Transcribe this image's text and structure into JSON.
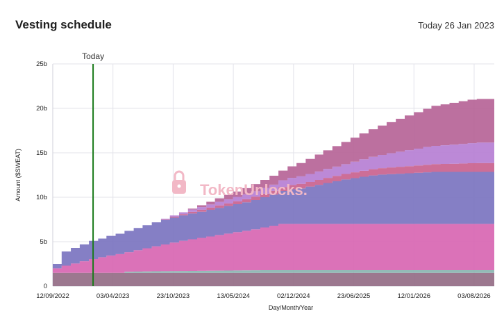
{
  "header": {
    "title": "Vesting schedule",
    "today_label": "Today 26 Jan 2023"
  },
  "watermark": "TokenUnlocks.",
  "colors": {
    "stack": [
      "#946d86",
      "#8ab5b1",
      "#d866b2",
      "#7b74c0",
      "#c9628e",
      "#b67fd4",
      "#b66497"
    ],
    "today_line": "#1a7a1a",
    "grid": "#e3e3ea"
  },
  "chart_data": {
    "type": "area",
    "title": "",
    "xlabel": "Day/Month/Year",
    "ylabel": "Amount ($SWEAT)",
    "ylim": [
      0,
      25
    ],
    "y_unit": "b",
    "yticks": [
      "0",
      "5b",
      "10b",
      "15b",
      "20b",
      "25b"
    ],
    "xticks": [
      "12/09/2022",
      "03/04/2023",
      "23/10/2023",
      "13/05/2024",
      "02/12/2024",
      "23/06/2025",
      "12/01/2026",
      "03/08/2026"
    ],
    "x": [
      "2022-09-12",
      "2022-10-12",
      "2022-11-12",
      "2022-12-12",
      "2023-01-12",
      "2023-02-12",
      "2023-03-12",
      "2023-04-12",
      "2023-05-12",
      "2023-06-12",
      "2023-07-12",
      "2023-08-12",
      "2023-09-12",
      "2023-10-12",
      "2023-11-12",
      "2023-12-12",
      "2024-01-12",
      "2024-02-12",
      "2024-03-12",
      "2024-04-12",
      "2024-05-12",
      "2024-06-12",
      "2024-07-12",
      "2024-08-12",
      "2024-09-12",
      "2024-10-12",
      "2024-11-12",
      "2024-12-12",
      "2025-01-12",
      "2025-02-12",
      "2025-03-12",
      "2025-04-12",
      "2025-05-12",
      "2025-06-12",
      "2025-07-12",
      "2025-08-12",
      "2025-09-12",
      "2025-10-12",
      "2025-11-12",
      "2025-12-12",
      "2026-01-12",
      "2026-02-12",
      "2026-03-12",
      "2026-04-12",
      "2026-05-12",
      "2026-06-12",
      "2026-07-12",
      "2026-08-12",
      "2026-09-12",
      "2026-10-10"
    ],
    "series": [
      {
        "values": [
          1.5,
          1.5,
          1.5,
          1.5,
          1.5,
          1.5,
          1.5,
          1.5,
          1.5,
          1.5,
          1.5,
          1.5,
          1.5,
          1.5,
          1.5,
          1.5,
          1.5,
          1.5,
          1.5,
          1.5,
          1.5,
          1.5,
          1.5,
          1.5,
          1.5,
          1.5,
          1.5,
          1.5,
          1.5,
          1.5,
          1.5,
          1.5,
          1.5,
          1.5,
          1.5,
          1.5,
          1.5,
          1.5,
          1.5,
          1.5,
          1.5,
          1.5,
          1.5,
          1.5,
          1.5,
          1.5,
          1.5,
          1.5,
          1.5,
          1.5
        ]
      },
      {
        "values": [
          0,
          0,
          0,
          0,
          0,
          0,
          0,
          0,
          0.12,
          0.14,
          0.16,
          0.18,
          0.19,
          0.2,
          0.21,
          0.22,
          0.23,
          0.24,
          0.25,
          0.26,
          0.27,
          0.28,
          0.29,
          0.3,
          0.3,
          0.3,
          0.3,
          0.3,
          0.3,
          0.3,
          0.3,
          0.3,
          0.3,
          0.3,
          0.3,
          0.3,
          0.3,
          0.3,
          0.3,
          0.3,
          0.3,
          0.3,
          0.3,
          0.3,
          0.3,
          0.3,
          0.3,
          0.3,
          0.3,
          0.3
        ]
      },
      {
        "values": [
          0.5,
          0.8,
          1.05,
          1.3,
          1.55,
          1.75,
          1.95,
          2.1,
          2.2,
          2.4,
          2.6,
          2.8,
          3.0,
          3.2,
          3.4,
          3.55,
          3.7,
          3.85,
          4.0,
          4.15,
          4.3,
          4.45,
          4.6,
          4.8,
          5.0,
          5.2,
          5.2,
          5.2,
          5.2,
          5.2,
          5.2,
          5.2,
          5.2,
          5.2,
          5.2,
          5.2,
          5.2,
          5.2,
          5.2,
          5.2,
          5.2,
          5.2,
          5.2,
          5.2,
          5.2,
          5.2,
          5.2,
          5.2,
          5.2,
          5.2
        ]
      },
      {
        "values": [
          0.5,
          1.6,
          1.75,
          1.9,
          2.05,
          2.1,
          2.2,
          2.3,
          2.4,
          2.5,
          2.6,
          2.7,
          2.75,
          2.8,
          2.85,
          2.9,
          2.95,
          3.0,
          3.05,
          3.1,
          3.15,
          3.2,
          3.3,
          3.4,
          3.5,
          3.7,
          3.9,
          4.0,
          4.2,
          4.4,
          4.6,
          4.8,
          5.0,
          5.15,
          5.3,
          5.45,
          5.55,
          5.6,
          5.65,
          5.7,
          5.75,
          5.8,
          5.85,
          5.85,
          5.85,
          5.85,
          5.85,
          5.85,
          5.85,
          5.3
        ]
      },
      {
        "values": [
          0,
          0,
          0,
          0,
          0,
          0,
          0,
          0,
          0,
          0,
          0,
          0,
          0.05,
          0.1,
          0.15,
          0.2,
          0.22,
          0.25,
          0.28,
          0.3,
          0.32,
          0.35,
          0.38,
          0.4,
          0.42,
          0.45,
          0.48,
          0.5,
          0.52,
          0.55,
          0.58,
          0.6,
          0.62,
          0.65,
          0.68,
          0.7,
          0.72,
          0.75,
          0.78,
          0.8,
          0.82,
          0.85,
          0.88,
          0.9,
          0.92,
          0.95,
          0.98,
          1.0,
          1.0,
          1.0
        ]
      },
      {
        "values": [
          0,
          0,
          0,
          0,
          0,
          0,
          0,
          0,
          0,
          0,
          0,
          0,
          0.1,
          0.15,
          0.2,
          0.25,
          0.3,
          0.35,
          0.4,
          0.45,
          0.5,
          0.55,
          0.6,
          0.65,
          0.7,
          0.75,
          0.8,
          0.85,
          0.9,
          0.95,
          1.0,
          1.05,
          1.1,
          1.2,
          1.3,
          1.4,
          1.5,
          1.6,
          1.7,
          1.8,
          1.9,
          2.0,
          2.05,
          2.1,
          2.15,
          2.2,
          2.25,
          2.3,
          2.3,
          2.3
        ]
      },
      {
        "values": [
          0,
          0,
          0,
          0,
          0,
          0,
          0,
          0,
          0,
          0,
          0,
          0,
          0,
          0,
          0,
          0.1,
          0.2,
          0.3,
          0.4,
          0.5,
          0.6,
          0.7,
          0.8,
          0.9,
          1.0,
          1.1,
          1.3,
          1.5,
          1.7,
          1.9,
          2.1,
          2.3,
          2.5,
          2.7,
          2.9,
          3.1,
          3.3,
          3.5,
          3.7,
          3.9,
          4.1,
          4.3,
          4.5,
          4.6,
          4.7,
          4.8,
          4.9,
          4.9,
          4.9,
          4.9
        ]
      }
    ],
    "today": {
      "date": "2023-01-26",
      "label": "Today"
    },
    "grid": true,
    "legend": "none"
  }
}
